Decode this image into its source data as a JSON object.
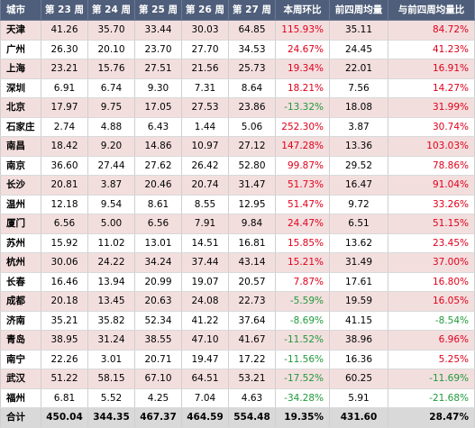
{
  "headers": [
    "城市",
    "第 23 周",
    "第 24 周",
    "第 25 周",
    "第 26 周",
    "第 27 周",
    "本周环比",
    "前四周均量",
    "与前四周均量比"
  ],
  "rows": [
    {
      "city": "天津",
      "w23": "41.26",
      "w24": "35.70",
      "w25": "33.44",
      "w26": "30.03",
      "w27": "64.85",
      "wow": "115.93%",
      "avg4": "35.11",
      "vs4": "84.72%",
      "wow_sign": "pos",
      "vs4_sign": "pos",
      "bg": "pink"
    },
    {
      "city": "广州",
      "w23": "26.30",
      "w24": "20.10",
      "w25": "23.70",
      "w26": "27.70",
      "w27": "34.53",
      "wow": "24.67%",
      "avg4": "24.45",
      "vs4": "41.23%",
      "wow_sign": "pos",
      "vs4_sign": "pos",
      "bg": "white"
    },
    {
      "city": "上海",
      "w23": "23.21",
      "w24": "15.76",
      "w25": "27.51",
      "w26": "21.56",
      "w27": "25.73",
      "wow": "19.34%",
      "avg4": "22.01",
      "vs4": "16.91%",
      "wow_sign": "pos",
      "vs4_sign": "pos",
      "bg": "pink"
    },
    {
      "city": "深圳",
      "w23": "6.91",
      "w24": "6.74",
      "w25": "9.30",
      "w26": "7.31",
      "w27": "8.64",
      "wow": "18.21%",
      "avg4": "7.56",
      "vs4": "14.27%",
      "wow_sign": "pos",
      "vs4_sign": "pos",
      "bg": "white"
    },
    {
      "city": "北京",
      "w23": "17.97",
      "w24": "9.75",
      "w25": "17.05",
      "w26": "27.53",
      "w27": "23.86",
      "wow": "-13.32%",
      "avg4": "18.08",
      "vs4": "31.99%",
      "wow_sign": "neg",
      "vs4_sign": "pos",
      "bg": "pink"
    },
    {
      "city": "石家庄",
      "w23": "2.74",
      "w24": "4.88",
      "w25": "6.43",
      "w26": "1.44",
      "w27": "5.06",
      "wow": "252.30%",
      "avg4": "3.87",
      "vs4": "30.74%",
      "wow_sign": "pos",
      "vs4_sign": "pos",
      "bg": "white",
      "sep": true
    },
    {
      "city": "南昌",
      "w23": "18.42",
      "w24": "9.20",
      "w25": "14.86",
      "w26": "10.97",
      "w27": "27.12",
      "wow": "147.28%",
      "avg4": "13.36",
      "vs4": "103.03%",
      "wow_sign": "pos",
      "vs4_sign": "pos",
      "bg": "pink"
    },
    {
      "city": "南京",
      "w23": "36.60",
      "w24": "27.44",
      "w25": "27.62",
      "w26": "26.42",
      "w27": "52.80",
      "wow": "99.87%",
      "avg4": "29.52",
      "vs4": "78.86%",
      "wow_sign": "pos",
      "vs4_sign": "pos",
      "bg": "white"
    },
    {
      "city": "长沙",
      "w23": "20.81",
      "w24": "3.87",
      "w25": "20.46",
      "w26": "20.74",
      "w27": "31.47",
      "wow": "51.73%",
      "avg4": "16.47",
      "vs4": "91.04%",
      "wow_sign": "pos",
      "vs4_sign": "pos",
      "bg": "pink"
    },
    {
      "city": "温州",
      "w23": "12.18",
      "w24": "9.54",
      "w25": "8.61",
      "w26": "8.55",
      "w27": "12.95",
      "wow": "51.47%",
      "avg4": "9.72",
      "vs4": "33.26%",
      "wow_sign": "pos",
      "vs4_sign": "pos",
      "bg": "white"
    },
    {
      "city": "厦门",
      "w23": "6.56",
      "w24": "5.00",
      "w25": "6.56",
      "w26": "7.91",
      "w27": "9.84",
      "wow": "24.47%",
      "avg4": "6.51",
      "vs4": "51.15%",
      "wow_sign": "pos",
      "vs4_sign": "pos",
      "bg": "pink"
    },
    {
      "city": "苏州",
      "w23": "15.92",
      "w24": "11.02",
      "w25": "13.01",
      "w26": "14.51",
      "w27": "16.81",
      "wow": "15.85%",
      "avg4": "13.62",
      "vs4": "23.45%",
      "wow_sign": "pos",
      "vs4_sign": "pos",
      "bg": "white"
    },
    {
      "city": "杭州",
      "w23": "30.06",
      "w24": "24.22",
      "w25": "34.24",
      "w26": "37.44",
      "w27": "43.14",
      "wow": "15.21%",
      "avg4": "31.49",
      "vs4": "37.00%",
      "wow_sign": "pos",
      "vs4_sign": "pos",
      "bg": "pink"
    },
    {
      "city": "长春",
      "w23": "16.46",
      "w24": "13.94",
      "w25": "20.99",
      "w26": "19.07",
      "w27": "20.57",
      "wow": "7.87%",
      "avg4": "17.61",
      "vs4": "16.80%",
      "wow_sign": "pos",
      "vs4_sign": "pos",
      "bg": "white"
    },
    {
      "city": "成都",
      "w23": "20.18",
      "w24": "13.45",
      "w25": "20.63",
      "w26": "24.08",
      "w27": "22.73",
      "wow": "-5.59%",
      "avg4": "19.59",
      "vs4": "16.05%",
      "wow_sign": "neg",
      "vs4_sign": "pos",
      "bg": "pink"
    },
    {
      "city": "济南",
      "w23": "35.21",
      "w24": "35.82",
      "w25": "52.34",
      "w26": "41.22",
      "w27": "37.64",
      "wow": "-8.69%",
      "avg4": "41.15",
      "vs4": "-8.54%",
      "wow_sign": "neg",
      "vs4_sign": "neg",
      "bg": "white"
    },
    {
      "city": "青岛",
      "w23": "38.95",
      "w24": "31.24",
      "w25": "38.55",
      "w26": "47.10",
      "w27": "41.67",
      "wow": "-11.52%",
      "avg4": "38.96",
      "vs4": "6.96%",
      "wow_sign": "neg",
      "vs4_sign": "pos",
      "bg": "pink"
    },
    {
      "city": "南宁",
      "w23": "22.26",
      "w24": "3.01",
      "w25": "20.71",
      "w26": "19.47",
      "w27": "17.22",
      "wow": "-11.56%",
      "avg4": "16.36",
      "vs4": "5.25%",
      "wow_sign": "neg",
      "vs4_sign": "pos",
      "bg": "white"
    },
    {
      "city": "武汉",
      "w23": "51.22",
      "w24": "58.15",
      "w25": "67.10",
      "w26": "64.51",
      "w27": "53.21",
      "wow": "-17.52%",
      "avg4": "60.25",
      "vs4": "-11.69%",
      "wow_sign": "neg",
      "vs4_sign": "neg",
      "bg": "pink"
    },
    {
      "city": "福州",
      "w23": "6.81",
      "w24": "5.52",
      "w25": "4.25",
      "w26": "7.04",
      "w27": "4.63",
      "wow": "-34.28%",
      "avg4": "5.91",
      "vs4": "-21.68%",
      "wow_sign": "neg",
      "vs4_sign": "neg",
      "bg": "white"
    }
  ],
  "total": {
    "city": "合计",
    "w23": "450.04",
    "w24": "344.35",
    "w25": "467.37",
    "w26": "464.59",
    "w27": "554.48",
    "wow": "19.35%",
    "avg4": "431.60",
    "vs4": "28.47%"
  },
  "colors": {
    "header_bg": "#4f5e7a",
    "pink_row": "#f3dede",
    "positive": "#e0001a",
    "negative": "#1f9a3c",
    "total_bg": "#d9d9d9"
  }
}
